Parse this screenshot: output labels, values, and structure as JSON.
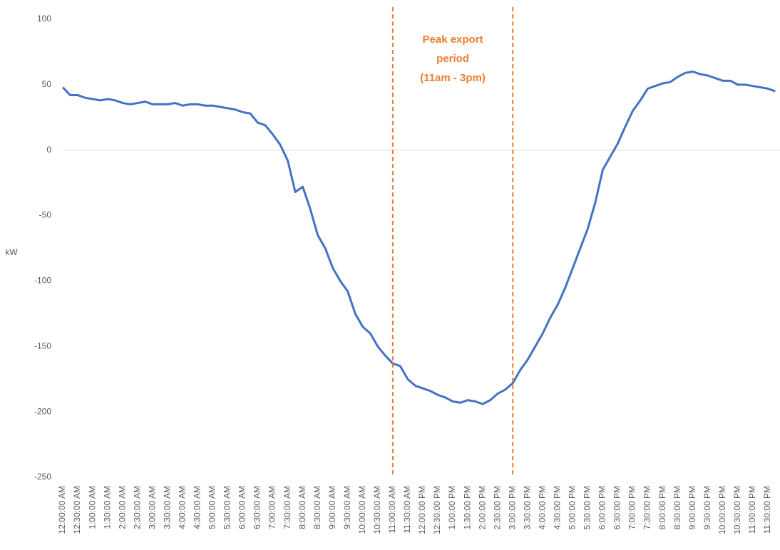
{
  "chart_data": {
    "type": "line",
    "y_label": "kW",
    "categories": [
      "12:00:00 AM",
      null,
      "12:30:00 AM",
      null,
      "1:00:00 AM",
      null,
      "1:30:00 AM",
      null,
      "2:00:00 AM",
      null,
      "2:30:00 AM",
      null,
      "3:00:00 AM",
      null,
      "3:30:00 AM",
      null,
      "4:00:00 AM",
      null,
      "4:30:00 AM",
      null,
      "5:00:00 AM",
      null,
      "5:30:00 AM",
      null,
      "6:00:00 AM",
      null,
      "6:30:00 AM",
      null,
      "7:00:00 AM",
      null,
      "7:30:00 AM",
      null,
      "8:00:00 AM",
      null,
      "8:30:00 AM",
      null,
      "9:00:00 AM",
      null,
      "9:30:00 AM",
      null,
      "10:00:00 AM",
      null,
      "10:30:00 AM",
      null,
      "11:00:00 AM",
      null,
      "11:30:00 AM",
      null,
      "12:00:00 PM",
      null,
      "12:30:00 PM",
      null,
      "1:00:00 PM",
      null,
      "1:30:00 PM",
      null,
      "2:00:00 PM",
      null,
      "2:30:00 PM",
      null,
      "3:00:00 PM",
      null,
      "3:30:00 PM",
      null,
      "4:00:00 PM",
      null,
      "4:30:00 PM",
      null,
      "5:00:00 PM",
      null,
      "5:30:00 PM",
      null,
      "6:00:00 PM",
      null,
      "6:30:00 PM",
      null,
      "7:00:00 PM",
      null,
      "7:30:00 PM",
      null,
      "8:00:00 PM",
      null,
      "8:30:00 PM",
      null,
      "9:00:00 PM",
      null,
      "9:30:00 PM",
      null,
      "10:00:00 PM",
      null,
      "10:30:00 PM",
      null,
      "11:00:00 PM",
      null,
      "11:30:00 PM",
      null
    ],
    "values": [
      48,
      42,
      42,
      40,
      39,
      38,
      39,
      38,
      36,
      35,
      36,
      37,
      35,
      35,
      35,
      36,
      34,
      35,
      35,
      34,
      34,
      33,
      32,
      31,
      29,
      28,
      21,
      19,
      12,
      4,
      -8,
      -32,
      -28,
      -45,
      -65,
      -75,
      -90,
      -100,
      -108,
      -125,
      -135,
      -140,
      -150,
      -157,
      -163,
      -165,
      -175,
      -180,
      -182,
      -184,
      -187,
      -189,
      -192,
      -193,
      -191,
      -192,
      -194,
      -191,
      -186,
      -183,
      -178,
      -168,
      -160,
      -150,
      -140,
      -128,
      -118,
      -105,
      -90,
      -75,
      -60,
      -40,
      -15,
      -5,
      5,
      18,
      30,
      38,
      47,
      49,
      51,
      52,
      56,
      59,
      60,
      58,
      57,
      55,
      53,
      53,
      50,
      50,
      49,
      48,
      47,
      45
    ],
    "color": "#4472c4",
    "ylim": [
      -250,
      100
    ],
    "yticks": [
      -250,
      -200,
      -150,
      -100,
      -50,
      0,
      50,
      100
    ],
    "grid": false,
    "period": {
      "start": "11:00:00 AM",
      "end": "3:00:00 PM",
      "color": "#ed7d31",
      "label": [
        "Peak export",
        "period",
        "(11am - 3pm)"
      ]
    }
  }
}
